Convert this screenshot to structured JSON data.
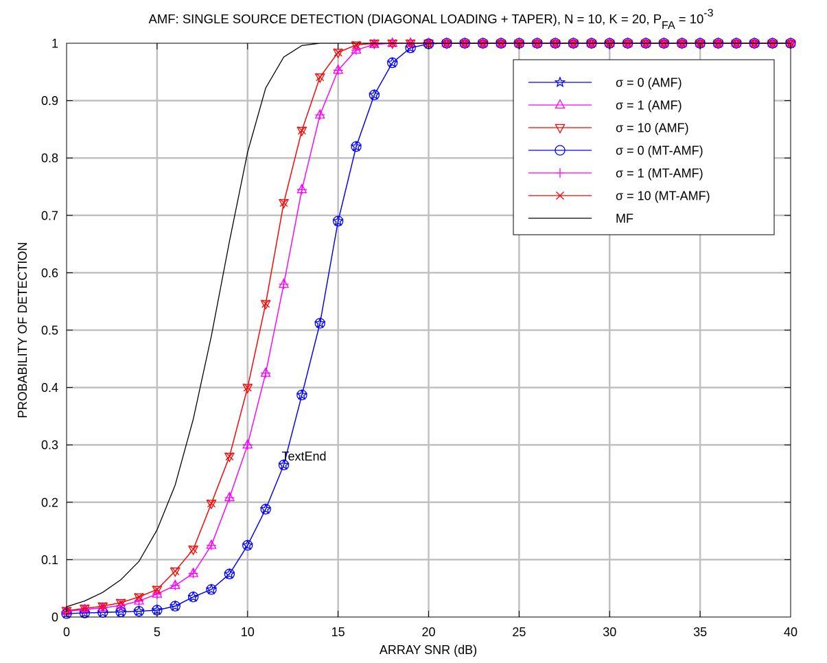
{
  "chart_data": {
    "type": "line",
    "title": {
      "main": "AMF: SINGLE SOURCE DETECTION (DIAGONAL LOADING + TAPER), N = 10, K = 20, P",
      "sub": "FA",
      "eq": " = 10",
      "sup": "-3"
    },
    "xlabel": "ARRAY SNR (dB)",
    "ylabel": "PROBABILITY OF DETECTION",
    "xlim": [
      0,
      40
    ],
    "ylim": [
      0,
      1
    ],
    "xticks": [
      "0",
      "5",
      "10",
      "15",
      "20",
      "25",
      "30",
      "35",
      "40"
    ],
    "yticks": [
      "0",
      "0.1",
      "0.2",
      "0.3",
      "0.4",
      "0.5",
      "0.6",
      "0.7",
      "0.8",
      "0.9",
      "1"
    ],
    "grid": true,
    "legend_position": "top-right",
    "annotation": {
      "text": "TextEnd",
      "x": 12,
      "y": 0.28
    },
    "x": [
      0,
      1,
      2,
      3,
      4,
      5,
      6,
      7,
      8,
      9,
      10,
      11,
      12,
      13,
      14,
      15,
      16,
      17,
      18,
      19,
      20,
      21,
      22,
      23,
      24,
      25,
      26,
      27,
      28,
      29,
      30,
      31,
      32,
      33,
      34,
      35,
      36,
      37,
      38,
      39,
      40
    ],
    "series": [
      {
        "name": "σ = 0   (AMF)",
        "color": "#0000ff",
        "marker": "star",
        "values": [
          0.006,
          0.007,
          0.008,
          0.009,
          0.01,
          0.012,
          0.019,
          0.035,
          0.048,
          0.075,
          0.125,
          0.188,
          0.265,
          0.387,
          0.512,
          0.69,
          0.82,
          0.91,
          0.966,
          0.992,
          0.999,
          1,
          1,
          1,
          1,
          1,
          1,
          1,
          1,
          1,
          1,
          1,
          1,
          1,
          1,
          1,
          1,
          1,
          1,
          1,
          1
        ]
      },
      {
        "name": "σ = 1   (AMF)",
        "color": "#ff00ff",
        "marker": "triangle-up",
        "values": [
          0.01,
          0.013,
          0.016,
          0.02,
          0.028,
          0.04,
          0.055,
          0.076,
          0.125,
          0.208,
          0.3,
          0.425,
          0.58,
          0.745,
          0.875,
          0.953,
          0.988,
          0.998,
          1,
          1,
          1,
          1,
          1,
          1,
          1,
          1,
          1,
          1,
          1,
          1,
          1,
          1,
          1,
          1,
          1,
          1,
          1,
          1,
          1,
          1,
          1
        ]
      },
      {
        "name": "σ = 10 (AMF)",
        "color": "#ff0000",
        "marker": "triangle-down",
        "values": [
          0.011,
          0.015,
          0.019,
          0.025,
          0.035,
          0.048,
          0.08,
          0.118,
          0.198,
          0.28,
          0.4,
          0.546,
          0.722,
          0.848,
          0.941,
          0.984,
          0.997,
          1,
          1,
          1,
          1,
          1,
          1,
          1,
          1,
          1,
          1,
          1,
          1,
          1,
          1,
          1,
          1,
          1,
          1,
          1,
          1,
          1,
          1,
          1,
          1
        ]
      },
      {
        "name": "σ = 0   (MT-AMF)",
        "color": "#0000ff",
        "marker": "circle",
        "values": [
          0.006,
          0.007,
          0.008,
          0.009,
          0.01,
          0.012,
          0.019,
          0.035,
          0.048,
          0.075,
          0.125,
          0.188,
          0.265,
          0.387,
          0.512,
          0.69,
          0.82,
          0.91,
          0.966,
          0.992,
          0.999,
          1,
          1,
          1,
          1,
          1,
          1,
          1,
          1,
          1,
          1,
          1,
          1,
          1,
          1,
          1,
          1,
          1,
          1,
          1,
          1
        ]
      },
      {
        "name": "σ = 1   (MT-AMF)",
        "color": "#ff00ff",
        "marker": "plus",
        "values": [
          0.01,
          0.013,
          0.016,
          0.02,
          0.028,
          0.04,
          0.055,
          0.076,
          0.125,
          0.208,
          0.3,
          0.425,
          0.58,
          0.745,
          0.875,
          0.953,
          0.988,
          0.998,
          1,
          1,
          1,
          1,
          1,
          1,
          1,
          1,
          1,
          1,
          1,
          1,
          1,
          1,
          1,
          1,
          1,
          1,
          1,
          1,
          1,
          1,
          1
        ]
      },
      {
        "name": "σ = 10 (MT-AMF)",
        "color": "#ff0000",
        "marker": "x",
        "values": [
          0.011,
          0.015,
          0.019,
          0.025,
          0.035,
          0.048,
          0.08,
          0.118,
          0.198,
          0.28,
          0.4,
          0.546,
          0.722,
          0.848,
          0.941,
          0.984,
          0.997,
          1,
          1,
          1,
          1,
          1,
          1,
          1,
          1,
          1,
          1,
          1,
          1,
          1,
          1,
          1,
          1,
          1,
          1,
          1,
          1,
          1,
          1,
          1,
          1
        ]
      },
      {
        "name": "MF",
        "color": "#000000",
        "marker": "none",
        "values": [
          0.018,
          0.028,
          0.043,
          0.065,
          0.097,
          0.152,
          0.23,
          0.345,
          0.49,
          0.655,
          0.81,
          0.922,
          0.976,
          0.996,
          1,
          1,
          1,
          1,
          1,
          1,
          1,
          1,
          1,
          1,
          1,
          1,
          1,
          1,
          1,
          1,
          1,
          1,
          1,
          1,
          1,
          1,
          1,
          1,
          1,
          1,
          1
        ]
      }
    ]
  }
}
